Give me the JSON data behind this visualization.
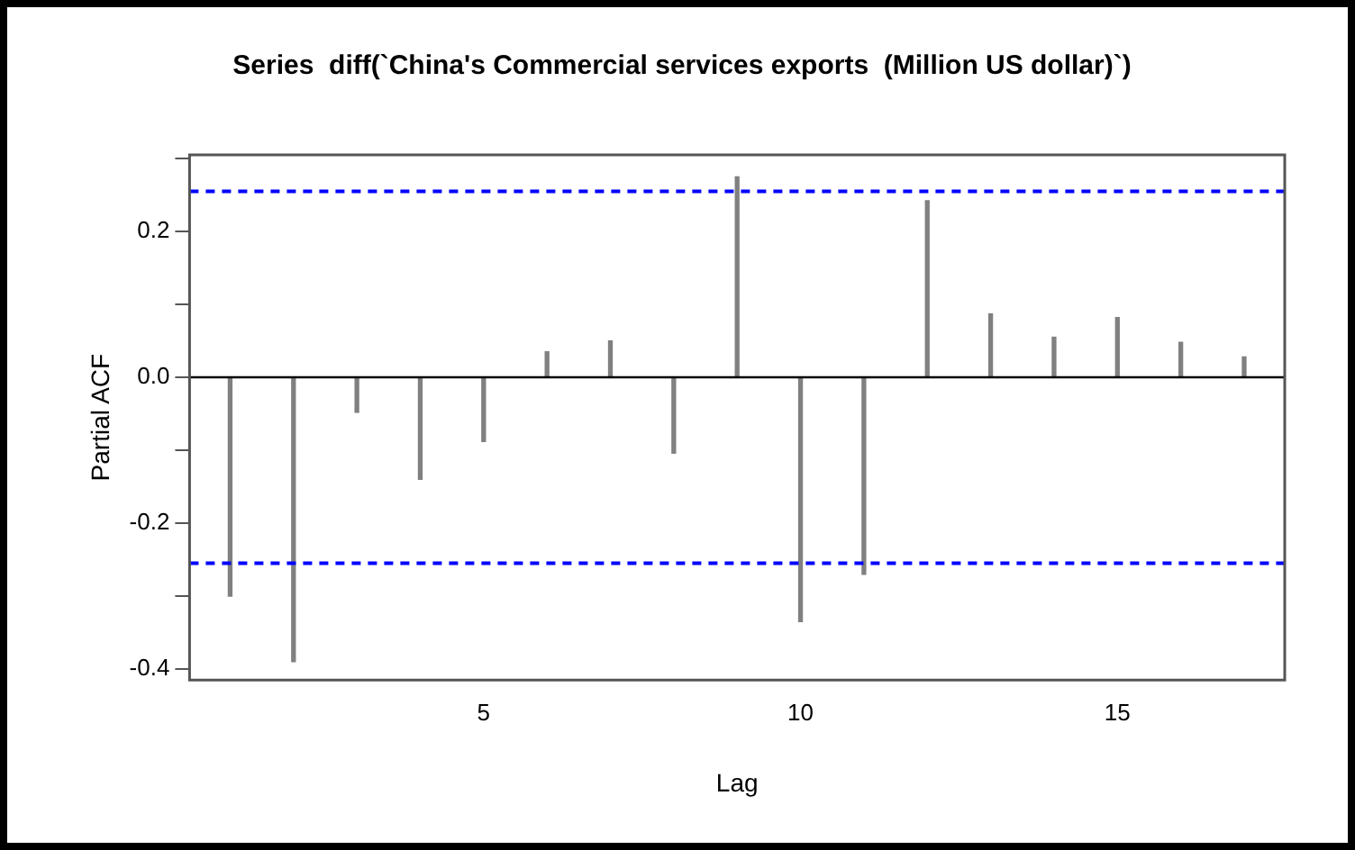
{
  "chart_data": {
    "type": "bar",
    "title": "Series  diff(`China's Commercial services exports  (Million US dollar)`)",
    "xlabel": "Lag",
    "ylabel": "Partial ACF",
    "x": [
      1,
      2,
      3,
      4,
      5,
      6,
      7,
      8,
      9,
      10,
      11,
      12,
      13,
      14,
      15,
      16,
      17
    ],
    "values": [
      -0.3,
      -0.39,
      -0.048,
      -0.14,
      -0.088,
      0.035,
      0.05,
      -0.104,
      0.275,
      -0.335,
      -0.27,
      0.242,
      0.087,
      0.055,
      0.082,
      0.048,
      0.028
    ],
    "color": "#808080",
    "xlim": [
      0.36,
      17.64
    ],
    "xticks": [
      5,
      10,
      15
    ],
    "ylim": [
      -0.415,
      0.305
    ],
    "yticks": [
      {
        "value": -0.4,
        "label": "-0.4"
      },
      {
        "value": -0.3,
        "label": null
      },
      {
        "value": -0.2,
        "label": "-0.2"
      },
      {
        "value": -0.1,
        "label": null
      },
      {
        "value": 0,
        "label": "0.0"
      },
      {
        "value": 0.1,
        "label": null
      },
      {
        "value": 0.2,
        "label": "0.2"
      },
      {
        "value": 0.3,
        "label": null
      }
    ],
    "ref_lines": [
      {
        "axis": "y",
        "value": 0,
        "color": "#000000",
        "line_style": "solid"
      },
      {
        "axis": "y",
        "value": 0.255,
        "color": "#0000ff",
        "line_style": "dashed"
      },
      {
        "axis": "y",
        "value": -0.255,
        "color": "#0000ff",
        "line_style": "dashed"
      }
    ],
    "grid": false,
    "legend": false
  }
}
